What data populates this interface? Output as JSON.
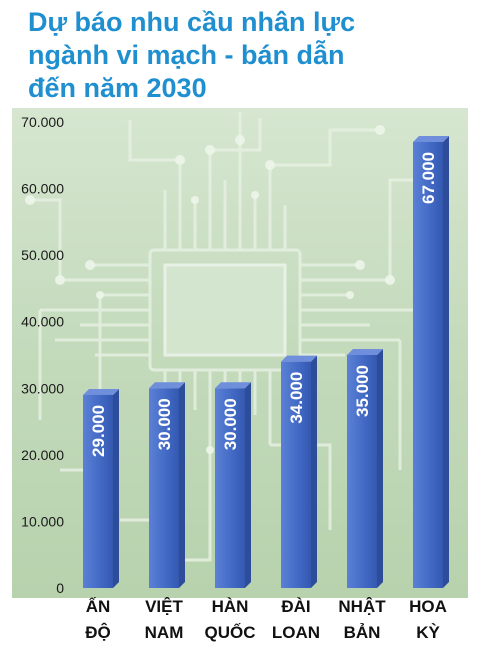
{
  "title_lines": [
    "Dự báo nhu cầu nhân lực",
    "ngành vi mạch - bán dẫn",
    "đến năm 2030"
  ],
  "colors": {
    "title": "#1f8fd0",
    "bar": "#4169c4",
    "bar_dark": "#2d4c99",
    "background": "#c7dcc0",
    "circuit": "#e4efe0"
  },
  "chart_data": {
    "type": "bar",
    "title": "Dự báo nhu cầu nhân lực ngành vi mạch - bán dẫn đến năm 2030",
    "categories": [
      [
        "ẤN",
        "ĐỘ"
      ],
      [
        "VIỆT",
        "NAM"
      ],
      [
        "HÀN",
        "QUỐC"
      ],
      [
        "ĐÀI",
        "LOAN"
      ],
      [
        "NHẬT",
        "BẢN"
      ],
      [
        "HOA",
        "KỲ"
      ]
    ],
    "values": [
      29000,
      30000,
      30000,
      34000,
      35000,
      67000
    ],
    "value_labels": [
      "29.000",
      "30.000",
      "30.000",
      "34.000",
      "35.000",
      "67.000"
    ],
    "yticks": [
      0,
      10000,
      20000,
      30000,
      40000,
      50000,
      60000,
      70000
    ],
    "ytick_labels": [
      "0",
      "10.000",
      "20.000",
      "30.000",
      "40.000",
      "50.000",
      "60.000",
      "70.000"
    ],
    "ylim": [
      0,
      70000
    ],
    "xlabel": "",
    "ylabel": "",
    "grid": false,
    "legend": "none"
  }
}
